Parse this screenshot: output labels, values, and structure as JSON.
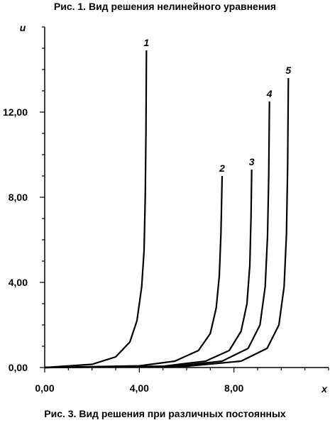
{
  "figure": {
    "top_caption": "Рис. 1. Вид решения нелинейного уравнения",
    "bottom_caption": "Рис. 3. Вид решения при различных постоянных"
  },
  "chart_data": {
    "type": "line",
    "title": "",
    "xlabel": "x",
    "ylabel": "u",
    "xlim": [
      0,
      12
    ],
    "ylim": [
      0,
      16
    ],
    "x_ticks": [
      0,
      4,
      8
    ],
    "x_tick_labels": [
      "0,00",
      "4,00",
      "8,00"
    ],
    "y_ticks": [
      0,
      4,
      8,
      12
    ],
    "y_tick_labels": [
      "0,00",
      "4,00",
      "8,00",
      "12,00"
    ],
    "grid": false,
    "legend": "none",
    "line_color": "#000000",
    "series": [
      {
        "name": "1",
        "x_end": 4.3,
        "y_end": 14.9,
        "x": [
          0,
          2.0,
          3.0,
          3.6,
          3.9,
          4.1,
          4.2,
          4.25,
          4.28,
          4.3
        ],
        "y": [
          0,
          0.15,
          0.5,
          1.2,
          2.2,
          3.8,
          5.5,
          8.0,
          11.0,
          14.9
        ]
      },
      {
        "name": "2",
        "x_end": 7.5,
        "y_end": 9.0,
        "x": [
          0,
          4.0,
          5.5,
          6.5,
          7.0,
          7.25,
          7.38,
          7.45,
          7.5
        ],
        "y": [
          0,
          0.08,
          0.3,
          0.8,
          1.6,
          2.8,
          4.3,
          6.3,
          9.0
        ]
      },
      {
        "name": "3",
        "x_end": 8.75,
        "y_end": 9.3,
        "x": [
          0,
          5.0,
          6.8,
          7.8,
          8.3,
          8.55,
          8.67,
          8.72,
          8.75
        ],
        "y": [
          0,
          0.06,
          0.3,
          0.8,
          1.7,
          3.0,
          4.8,
          7.0,
          9.3
        ]
      },
      {
        "name": "4",
        "x_end": 9.5,
        "y_end": 12.5,
        "x": [
          0,
          5.5,
          7.5,
          8.6,
          9.1,
          9.32,
          9.42,
          9.47,
          9.5
        ],
        "y": [
          0,
          0.06,
          0.3,
          0.9,
          2.0,
          3.8,
          6.2,
          9.0,
          12.5
        ]
      },
      {
        "name": "5",
        "x_end": 10.3,
        "y_end": 13.6,
        "x": [
          0,
          6.0,
          8.3,
          9.4,
          9.9,
          10.12,
          10.22,
          10.27,
          10.3
        ],
        "y": [
          0,
          0.06,
          0.3,
          0.9,
          2.0,
          3.8,
          6.3,
          9.5,
          13.6
        ]
      }
    ]
  }
}
